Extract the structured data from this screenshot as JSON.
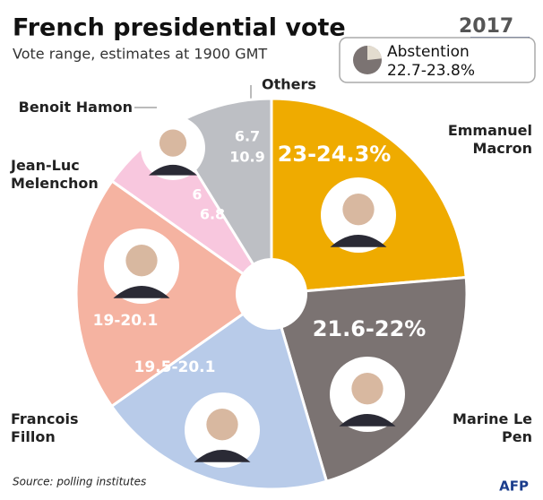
{
  "chart_data": {
    "type": "pie",
    "title": "French presidential vote",
    "subtitle": "Vote range, estimates at 1900 GMT",
    "logo_year": "2017",
    "categories": [
      "Emmanuel Macron",
      "Marine Le Pen",
      "Francois Fillon",
      "Jean-Luc Melenchon",
      "Benoit Hamon",
      "Others"
    ],
    "low": [
      23,
      21.6,
      19.5,
      19,
      6,
      6.7
    ],
    "high": [
      24.3,
      22,
      20.1,
      20.1,
      6.8,
      10.9
    ],
    "value_labels": [
      "23-24.3%",
      "21.6-22%",
      "19.5-20.1",
      "19-20.1",
      null,
      null
    ],
    "colors": [
      "#efab00",
      "#7b7372",
      "#b8cbe9",
      "#f5b3a1",
      "#f8c7de",
      "#bdbfc4"
    ],
    "abstention": {
      "label": "Abstention",
      "low": 22.7,
      "high": 23.8,
      "value_label": "22.7-23.8%"
    },
    "source": "Source: polling institutes",
    "credit": "AFP"
  }
}
